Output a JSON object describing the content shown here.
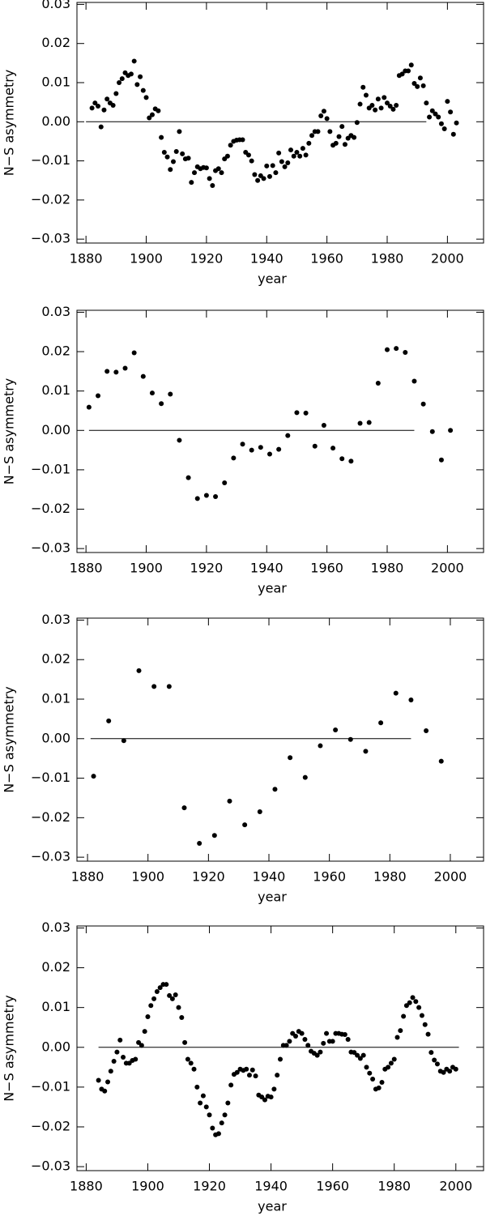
{
  "chart_data": [
    {
      "type": "scatter",
      "xlabel": "year",
      "ylabel": "N−S asymmetry",
      "color": "#000000",
      "xlim": [
        1877,
        2012
      ],
      "xticks": [
        1880,
        1900,
        1920,
        1940,
        1960,
        1980,
        2000
      ],
      "ylim": [
        -0.031,
        0.0305
      ],
      "yticks": [
        0.03,
        0.02,
        0.01,
        {
          "value": 0,
          "label": "0.00"
        },
        {
          "value": -0.01,
          "label": "−0.01"
        },
        {
          "value": -0.02,
          "label": "−0.02"
        },
        {
          "value": -0.03,
          "label": "−0.03"
        }
      ],
      "reference_line": {
        "y": 0,
        "x": [
          1880,
          1993
        ]
      },
      "x": [
        1882,
        1883,
        1884,
        1885,
        1886,
        1887,
        1888,
        1889,
        1890,
        1891,
        1892,
        1893,
        1894,
        1895,
        1896,
        1897,
        1898,
        1899,
        1900,
        1901,
        1902,
        1903,
        1904,
        1905,
        1906,
        1907,
        1908,
        1909,
        1910,
        1911,
        1912,
        1913,
        1914,
        1915,
        1916,
        1917,
        1918,
        1919,
        1920,
        1921,
        1922,
        1923,
        1924,
        1925,
        1926,
        1927,
        1928,
        1929,
        1930,
        1931,
        1932,
        1933,
        1934,
        1935,
        1936,
        1937,
        1938,
        1939,
        1940,
        1941,
        1942,
        1943,
        1944,
        1945,
        1946,
        1947,
        1948,
        1949,
        1950,
        1951,
        1952,
        1953,
        1954,
        1955,
        1956,
        1957,
        1958,
        1959,
        1960,
        1961,
        1962,
        1963,
        1964,
        1965,
        1966,
        1967,
        1968,
        1969,
        1970,
        1971,
        1972,
        1973,
        1974,
        1975,
        1976,
        1977,
        1978,
        1979,
        1980,
        1981,
        1982,
        1983,
        1984,
        1985,
        1986,
        1987,
        1988,
        1989,
        1990,
        1991,
        1992,
        1993,
        1994,
        1995,
        1996,
        1997,
        1998,
        1999,
        2000,
        2001,
        2002,
        2003
      ],
      "values": [
        0.0035,
        0.0048,
        0.004,
        -0.0013,
        0.003,
        0.0058,
        0.0048,
        0.0042,
        0.0072,
        0.01,
        0.011,
        0.0125,
        0.0118,
        0.0122,
        0.0155,
        0.0095,
        0.0115,
        0.008,
        0.0062,
        0.001,
        0.0018,
        0.0033,
        0.0028,
        -0.004,
        -0.0078,
        -0.009,
        -0.0122,
        -0.0102,
        -0.0076,
        -0.0025,
        -0.0082,
        -0.0095,
        -0.0093,
        -0.0155,
        -0.013,
        -0.0115,
        -0.012,
        -0.0117,
        -0.0118,
        -0.0145,
        -0.0163,
        -0.0125,
        -0.012,
        -0.013,
        -0.0095,
        -0.0088,
        -0.006,
        -0.005,
        -0.0047,
        -0.0046,
        -0.0046,
        -0.0078,
        -0.0085,
        -0.01,
        -0.0135,
        -0.015,
        -0.0138,
        -0.0145,
        -0.0113,
        -0.014,
        -0.0112,
        -0.013,
        -0.008,
        -0.0102,
        -0.0115,
        -0.0105,
        -0.0072,
        -0.0088,
        -0.0078,
        -0.0088,
        -0.0068,
        -0.0085,
        -0.0055,
        -0.0035,
        -0.0025,
        -0.0025,
        0.0015,
        0.0027,
        0.0008,
        -0.0025,
        -0.006,
        -0.0055,
        -0.0038,
        -0.0012,
        -0.0058,
        -0.0042,
        -0.0035,
        -0.004,
        -0.0002,
        0.0045,
        0.0088,
        0.0068,
        0.0035,
        0.0042,
        0.003,
        0.0058,
        0.0035,
        0.0062,
        0.0048,
        0.004,
        0.0032,
        0.0042,
        0.0118,
        0.0122,
        0.013,
        0.013,
        0.0145,
        0.0098,
        0.009,
        0.0112,
        0.0092,
        0.0048,
        0.0012,
        0.0028,
        0.002,
        0.0012,
        -0.0005,
        -0.0018,
        0.0052,
        0.0025,
        -0.0032,
        -0.0003
      ]
    },
    {
      "type": "scatter",
      "xlabel": "year",
      "ylabel": "N−S asymmetry",
      "color": "#000000",
      "xlim": [
        1877,
        2012
      ],
      "xticks": [
        1880,
        1900,
        1920,
        1940,
        1960,
        1980,
        2000
      ],
      "ylim": [
        -0.031,
        0.0305
      ],
      "yticks": [
        0.03,
        0.02,
        0.01,
        {
          "value": 0,
          "label": "0.00"
        },
        {
          "value": -0.01,
          "label": "−0.01"
        },
        {
          "value": -0.02,
          "label": "−0.02"
        },
        {
          "value": -0.03,
          "label": "−0.03"
        }
      ],
      "reference_line": {
        "y": 0,
        "x": [
          1881,
          1989
        ]
      },
      "x": [
        1881,
        1884,
        1887,
        1890,
        1893,
        1896,
        1899,
        1902,
        1905,
        1908,
        1911,
        1914,
        1917,
        1920,
        1923,
        1926,
        1929,
        1932,
        1935,
        1938,
        1941,
        1944,
        1947,
        1950,
        1953,
        1956,
        1959,
        1962,
        1965,
        1968,
        1971,
        1974,
        1977,
        1980,
        1983,
        1986,
        1989,
        1992,
        1995,
        1998,
        2001
      ],
      "values": [
        0.0059,
        0.0088,
        0.015,
        0.0148,
        0.0158,
        0.0197,
        0.0137,
        0.0095,
        0.0068,
        0.0092,
        -0.0025,
        -0.012,
        -0.0173,
        -0.0165,
        -0.0168,
        -0.0133,
        -0.007,
        -0.0035,
        -0.005,
        -0.0043,
        -0.006,
        -0.0048,
        -0.0013,
        0.0045,
        0.0044,
        -0.004,
        0.0013,
        -0.0045,
        -0.0072,
        -0.0078,
        0.0018,
        0.002,
        0.012,
        0.0205,
        0.0208,
        0.0198,
        0.0125,
        0.0067,
        -0.0003,
        -0.0075,
        0.0
      ]
    },
    {
      "type": "scatter",
      "xlabel": "year",
      "ylabel": "N−S asymmetry",
      "color": "#000000",
      "xlim": [
        1876.5,
        2011
      ],
      "xticks": [
        1880,
        1900,
        1920,
        1940,
        1960,
        1980,
        2000
      ],
      "ylim": [
        -0.031,
        0.0305
      ],
      "yticks": [
        0.03,
        0.02,
        0.01,
        {
          "value": 0,
          "label": "0.00"
        },
        {
          "value": -0.01,
          "label": "−0.01"
        },
        {
          "value": -0.02,
          "label": "−0.02"
        },
        {
          "value": -0.03,
          "label": "−0.03"
        }
      ],
      "reference_line": {
        "y": 0,
        "x": [
          1881,
          1987
        ]
      },
      "x": [
        1882,
        1887,
        1892,
        1897,
        1902,
        1907,
        1912,
        1917,
        1922,
        1927,
        1932,
        1937,
        1942,
        1947,
        1952,
        1957,
        1962,
        1967,
        1972,
        1977,
        1982,
        1987,
        1992,
        1997
      ],
      "values": [
        -0.0095,
        0.0045,
        -0.0005,
        0.0172,
        0.0132,
        0.0132,
        -0.0175,
        -0.0265,
        -0.0245,
        -0.0158,
        -0.0218,
        -0.0185,
        -0.0128,
        -0.0048,
        -0.0098,
        -0.0018,
        0.0022,
        -0.0002,
        -0.0032,
        0.004,
        0.0115,
        0.0098,
        0.002,
        -0.0057
      ]
    },
    {
      "type": "scatter",
      "xlabel": "year",
      "ylabel": "N−S asymmetry",
      "color": "#000000",
      "xlim": [
        1877,
        2009
      ],
      "xticks": [
        1880,
        1900,
        1920,
        1940,
        1960,
        1980,
        2000
      ],
      "ylim": [
        -0.031,
        0.0305
      ],
      "yticks": [
        0.03,
        0.02,
        0.01,
        {
          "value": 0,
          "label": "0.00"
        },
        {
          "value": -0.01,
          "label": "−0.01"
        },
        {
          "value": -0.02,
          "label": "−0.02"
        },
        {
          "value": -0.03,
          "label": "−0.03"
        }
      ],
      "reference_line": {
        "y": 0,
        "x": [
          1884,
          2001
        ]
      },
      "x": [
        1884,
        1885,
        1886,
        1887,
        1888,
        1889,
        1890,
        1891,
        1892,
        1893,
        1894,
        1895,
        1896,
        1897,
        1898,
        1899,
        1900,
        1901,
        1902,
        1903,
        1904,
        1905,
        1906,
        1907,
        1908,
        1909,
        1910,
        1911,
        1912,
        1913,
        1914,
        1915,
        1916,
        1917,
        1918,
        1919,
        1920,
        1921,
        1922,
        1923,
        1924,
        1925,
        1926,
        1927,
        1928,
        1929,
        1930,
        1931,
        1932,
        1933,
        1934,
        1935,
        1936,
        1937,
        1938,
        1939,
        1940,
        1941,
        1942,
        1943,
        1944,
        1945,
        1946,
        1947,
        1948,
        1949,
        1950,
        1951,
        1952,
        1953,
        1954,
        1955,
        1956,
        1957,
        1958,
        1959,
        1960,
        1961,
        1962,
        1963,
        1964,
        1965,
        1966,
        1967,
        1968,
        1969,
        1970,
        1971,
        1972,
        1973,
        1974,
        1975,
        1976,
        1977,
        1978,
        1979,
        1980,
        1981,
        1982,
        1983,
        1984,
        1985,
        1986,
        1987,
        1988,
        1989,
        1990,
        1991,
        1992,
        1993,
        1994,
        1995,
        1996,
        1997,
        1998,
        1999,
        2000
      ],
      "values": [
        -0.0083,
        -0.0105,
        -0.011,
        -0.0087,
        -0.006,
        -0.0035,
        -0.0012,
        0.0018,
        -0.0025,
        -0.004,
        -0.004,
        -0.0033,
        -0.003,
        0.0012,
        0.0005,
        0.004,
        0.0077,
        0.0105,
        0.0122,
        0.014,
        0.015,
        0.0158,
        0.0158,
        0.013,
        0.0122,
        0.0132,
        0.01,
        0.0075,
        0.0012,
        -0.003,
        -0.004,
        -0.0055,
        -0.01,
        -0.014,
        -0.0122,
        -0.015,
        -0.017,
        -0.0203,
        -0.022,
        -0.0217,
        -0.019,
        -0.017,
        -0.014,
        -0.0095,
        -0.0068,
        -0.0063,
        -0.0055,
        -0.0058,
        -0.0055,
        -0.007,
        -0.0057,
        -0.0072,
        -0.012,
        -0.0125,
        -0.0132,
        -0.0123,
        -0.0125,
        -0.0105,
        -0.007,
        -0.003,
        0.0005,
        0.0005,
        0.0015,
        0.0035,
        0.0028,
        0.004,
        0.0035,
        0.002,
        0.0005,
        -0.001,
        -0.0015,
        -0.002,
        -0.0012,
        0.001,
        0.0035,
        0.0015,
        0.0015,
        0.0035,
        0.0035,
        0.0033,
        0.0032,
        0.002,
        -0.0012,
        -0.0013,
        -0.002,
        -0.0028,
        -0.002,
        -0.005,
        -0.0065,
        -0.008,
        -0.0105,
        -0.0102,
        -0.0088,
        -0.0055,
        -0.005,
        -0.004,
        -0.003,
        0.0025,
        0.0042,
        0.0078,
        0.0105,
        0.0112,
        0.0125,
        0.0115,
        0.01,
        0.008,
        0.0057,
        0.0033,
        -0.0013,
        -0.0032,
        -0.0042,
        -0.006,
        -0.0063,
        -0.0055,
        -0.006,
        -0.005,
        -0.0055
      ]
    }
  ]
}
